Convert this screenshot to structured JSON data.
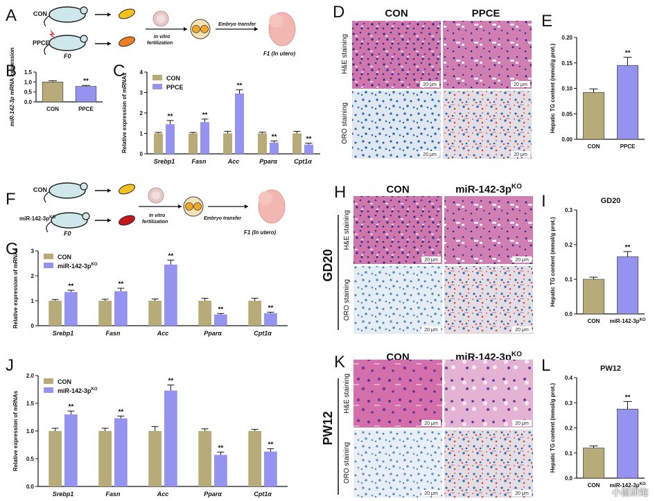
{
  "colors": {
    "con": "#b8ab7a",
    "treat": "#9593f0",
    "he_bg": "#c86aa6",
    "oro_bg": "#dfe7f0",
    "nucleus": "#2d2f88",
    "oro_nuc": "#2c6fb6",
    "lipid": "#c74a4a"
  },
  "panels": {
    "A": {
      "label": "A",
      "group1": "CON",
      "group2": "PPCE",
      "f0": "F0",
      "ivf": "In vitro fertilization",
      "transfer": "Embryo transfer",
      "f1": "F1 (In utero)"
    },
    "F": {
      "label": "F",
      "group1": "CON",
      "group2": "miR-142-3p",
      "group2_sup": "KO",
      "f0": "F0",
      "ivf": "In vitro fertilization",
      "transfer": "Embryo transfer",
      "f1": "F1 (In utero)"
    },
    "D": {
      "label": "D",
      "col1": "CON",
      "col2": "PPCE",
      "row1": "H&E staining",
      "row2": "ORO staining",
      "scale": "20 μm"
    },
    "H": {
      "label": "H",
      "col1": "CON",
      "col2": "miR-142-3p",
      "col2_sup": "KO",
      "row1": "H&E staining",
      "row2": "ORO staining",
      "scale": "20 μm",
      "side": "GD20"
    },
    "K": {
      "label": "K",
      "col1": "CON",
      "col2": "miR-142-3p",
      "col2_sup": "KO",
      "row1": "H&E staining",
      "row2": "ORO staining",
      "scale": "20 μm",
      "side": "PW12"
    }
  },
  "chart_data": [
    {
      "id": "B",
      "type": "bar",
      "title": "",
      "ylabel": "miR-142-3p mRNA expression",
      "ylabel_italic": "miR-142-3p",
      "ylabel_rest": " mRNA expression",
      "ylim": [
        0,
        1.5
      ],
      "yticks": [
        0,
        0.5,
        1.0,
        1.5
      ],
      "ytick_labels": [
        "0.0",
        "0.5",
        "1.0",
        "1.5"
      ],
      "categories": [
        "CON",
        "PPCE"
      ],
      "values": [
        1.0,
        0.78
      ],
      "errors": [
        0.06,
        0.05
      ],
      "sig": [
        "",
        "**"
      ]
    },
    {
      "id": "C",
      "type": "bar",
      "ylabel": "Relative expression of mRNAs",
      "ylim": [
        0,
        4
      ],
      "yticks": [
        0,
        1,
        2,
        3,
        4
      ],
      "ytick_labels": [
        "0",
        "1",
        "2",
        "3",
        "4"
      ],
      "categories": [
        "Srebp1",
        "Fasn",
        "Acc",
        "Pparα",
        "Cpt1α"
      ],
      "legend_position": "top-left",
      "series": [
        {
          "name": "CON",
          "values": [
            1.0,
            1.0,
            1.0,
            1.0,
            1.0
          ],
          "errors": [
            0.05,
            0.05,
            0.1,
            0.06,
            0.1
          ],
          "sig": [
            "",
            "",
            "",
            "",
            ""
          ]
        },
        {
          "name": "PPCE",
          "values": [
            1.45,
            1.55,
            2.95,
            0.55,
            0.45
          ],
          "errors": [
            0.18,
            0.15,
            0.18,
            0.08,
            0.07
          ],
          "sig": [
            "**",
            "**",
            "**",
            "**",
            "**"
          ]
        }
      ]
    },
    {
      "id": "E",
      "type": "bar",
      "ylabel": "Hepatic TG content (mmol/g prot.)",
      "ylim": [
        0,
        0.2
      ],
      "yticks": [
        0,
        0.05,
        0.1,
        0.15,
        0.2
      ],
      "ytick_labels": [
        "0.00",
        "0.05",
        "0.10",
        "0.15",
        "0.20"
      ],
      "categories": [
        "CON",
        "PPCE"
      ],
      "values": [
        0.092,
        0.145
      ],
      "errors": [
        0.007,
        0.016
      ],
      "sig": [
        "",
        "**"
      ]
    },
    {
      "id": "G",
      "type": "bar",
      "ylabel": "Relative expression of mRNAs",
      "ylim": [
        0,
        3
      ],
      "yticks": [
        0,
        1,
        2,
        3
      ],
      "ytick_labels": [
        "0",
        "1",
        "2",
        "3"
      ],
      "categories": [
        "Srebp1",
        "Fasn",
        "Acc",
        "Pparα",
        "Cpt1α"
      ],
      "legend_position": "top-left",
      "series": [
        {
          "name": "CON",
          "values": [
            1.0,
            1.0,
            1.0,
            1.0,
            1.0
          ],
          "errors": [
            0.05,
            0.06,
            0.07,
            0.1,
            0.1
          ],
          "sig": [
            "",
            "",
            "",
            "",
            ""
          ]
        },
        {
          "name": "miR-142-3p",
          "name_sup": "KO",
          "values": [
            1.35,
            1.38,
            2.45,
            0.45,
            0.5
          ],
          "errors": [
            0.07,
            0.12,
            0.18,
            0.04,
            0.04
          ],
          "sig": [
            "**",
            "**",
            "**",
            "**",
            "**"
          ]
        }
      ]
    },
    {
      "id": "I",
      "type": "bar",
      "title": "GD20",
      "ylabel": "Hepatic TG content (mmol/g prot.)",
      "ylim": [
        0,
        0.3
      ],
      "yticks": [
        0,
        0.1,
        0.2,
        0.3
      ],
      "ytick_labels": [
        "0.0",
        "0.1",
        "0.2",
        "0.3"
      ],
      "categories": [
        "CON",
        "miR-142-3p"
      ],
      "cat_sup": [
        "",
        "KO"
      ],
      "values": [
        0.1,
        0.165
      ],
      "errors": [
        0.006,
        0.015
      ],
      "sig": [
        "",
        "**"
      ]
    },
    {
      "id": "J",
      "type": "bar",
      "ylabel": "Relative expression of mRNAs",
      "ylim": [
        0,
        2.0
      ],
      "yticks": [
        0,
        0.5,
        1.0,
        1.5,
        2.0
      ],
      "ytick_labels": [
        "0.0",
        "0.5",
        "1.0",
        "1.5",
        "2.0"
      ],
      "categories": [
        "Srebp1",
        "Fasn",
        "Acc",
        "Pparα",
        "Cpt1α"
      ],
      "legend_position": "top-left",
      "series": [
        {
          "name": "CON",
          "values": [
            1.0,
            1.0,
            1.0,
            1.0,
            1.0
          ],
          "errors": [
            0.05,
            0.05,
            0.08,
            0.04,
            0.03
          ],
          "sig": [
            "",
            "",
            "",
            "",
            ""
          ]
        },
        {
          "name": "miR-142-3p",
          "name_sup": "KO",
          "values": [
            1.3,
            1.23,
            1.73,
            0.57,
            0.63
          ],
          "errors": [
            0.06,
            0.04,
            0.1,
            0.05,
            0.05
          ],
          "sig": [
            "**",
            "**",
            "**",
            "**",
            "**"
          ]
        }
      ]
    },
    {
      "id": "L",
      "type": "bar",
      "title": "PW12",
      "ylabel": "Hepatic TG content (mmol/g prot.)",
      "ylim": [
        0,
        0.4
      ],
      "yticks": [
        0,
        0.1,
        0.2,
        0.3,
        0.4
      ],
      "ytick_labels": [
        "0.0",
        "0.1",
        "0.2",
        "0.3",
        "0.4"
      ],
      "categories": [
        "CON",
        "miR-142-3p"
      ],
      "cat_sup": [
        "",
        "KO"
      ],
      "values": [
        0.12,
        0.275
      ],
      "errors": [
        0.008,
        0.03
      ],
      "sig": [
        "",
        "**"
      ]
    }
  ],
  "watermark": "小鼠研炮"
}
